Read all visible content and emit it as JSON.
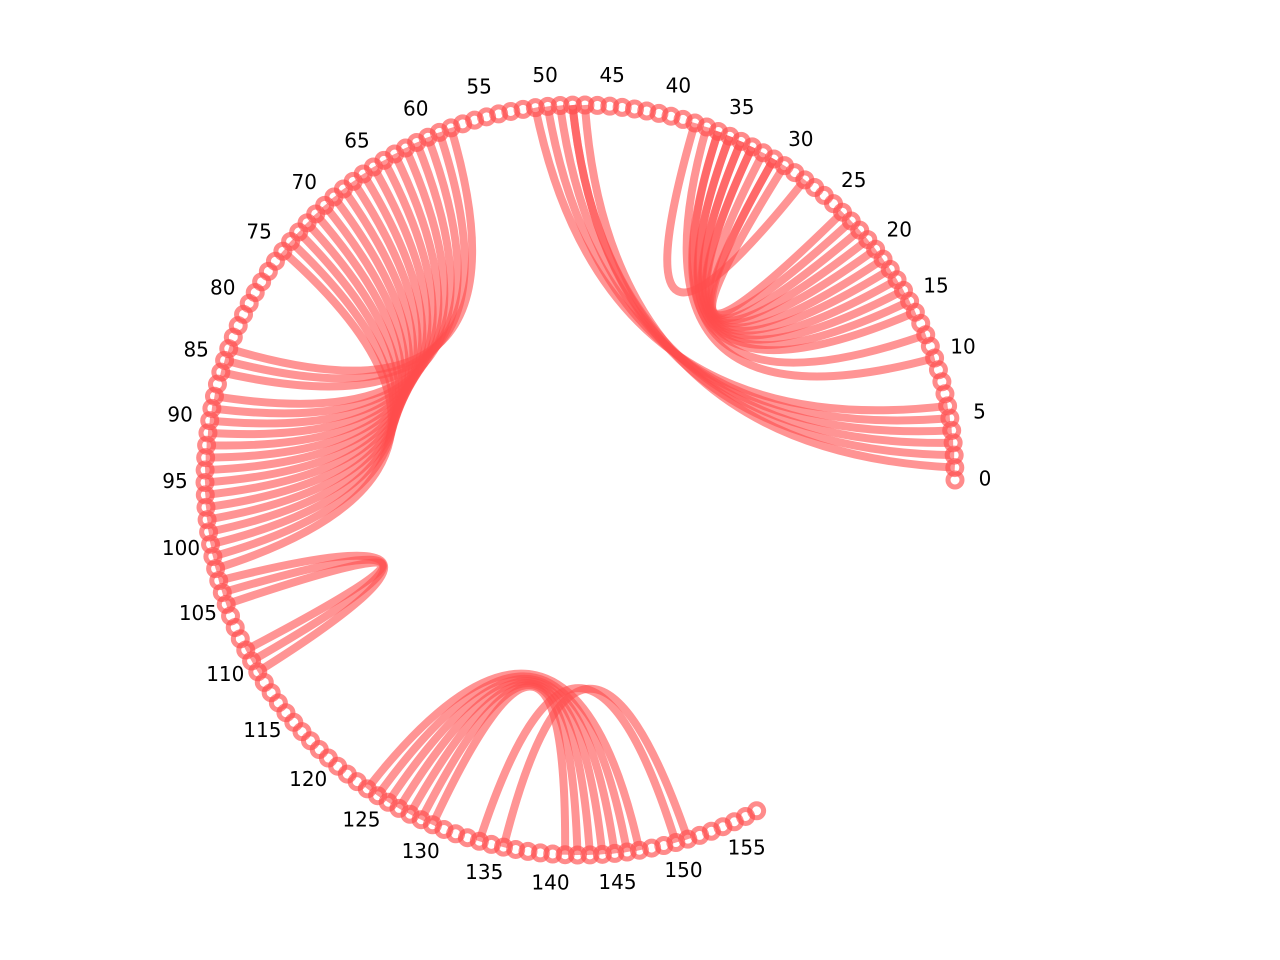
{
  "diagram": {
    "type": "arc_diagram",
    "node_count": 158,
    "arc_degrees": 300,
    "start_angle_deg": 0,
    "tick_labels": [
      "0",
      "5",
      "10",
      "15",
      "20",
      "25",
      "30",
      "35",
      "40",
      "45",
      "50",
      "55",
      "60",
      "65",
      "70",
      "75",
      "80",
      "85",
      "90",
      "95",
      "100",
      "105",
      "110",
      "115",
      "120",
      "125",
      "130",
      "135",
      "140",
      "145",
      "150",
      "155"
    ],
    "tick_step": 5,
    "colors": {
      "nodes": "#ff4d4d",
      "edges": "#ff4d4d"
    },
    "edges": [
      [
        1,
        47
      ],
      [
        2,
        48
      ],
      [
        3,
        48
      ],
      [
        4,
        49
      ],
      [
        5,
        50
      ],
      [
        6,
        51
      ],
      [
        10,
        37
      ],
      [
        12,
        36
      ],
      [
        14,
        36
      ],
      [
        15,
        35
      ],
      [
        16,
        35
      ],
      [
        17,
        34
      ],
      [
        18,
        34
      ],
      [
        19,
        33
      ],
      [
        20,
        33
      ],
      [
        21,
        32
      ],
      [
        22,
        31
      ],
      [
        23,
        31
      ],
      [
        24,
        30
      ],
      [
        28,
        38
      ],
      [
        58,
        84
      ],
      [
        59,
        85
      ],
      [
        60,
        86
      ],
      [
        61,
        88
      ],
      [
        62,
        89
      ],
      [
        63,
        90
      ],
      [
        64,
        91
      ],
      [
        65,
        92
      ],
      [
        66,
        93
      ],
      [
        67,
        94
      ],
      [
        68,
        95
      ],
      [
        69,
        96
      ],
      [
        70,
        97
      ],
      [
        71,
        98
      ],
      [
        72,
        99
      ],
      [
        73,
        100
      ],
      [
        74,
        101
      ],
      [
        75,
        102
      ],
      [
        103,
        111
      ],
      [
        104,
        110
      ],
      [
        105,
        109
      ],
      [
        124,
        147
      ],
      [
        125,
        146
      ],
      [
        126,
        145
      ],
      [
        127,
        144
      ],
      [
        128,
        143
      ],
      [
        129,
        142
      ],
      [
        130,
        141
      ],
      [
        134,
        150
      ],
      [
        136,
        151
      ]
    ]
  }
}
